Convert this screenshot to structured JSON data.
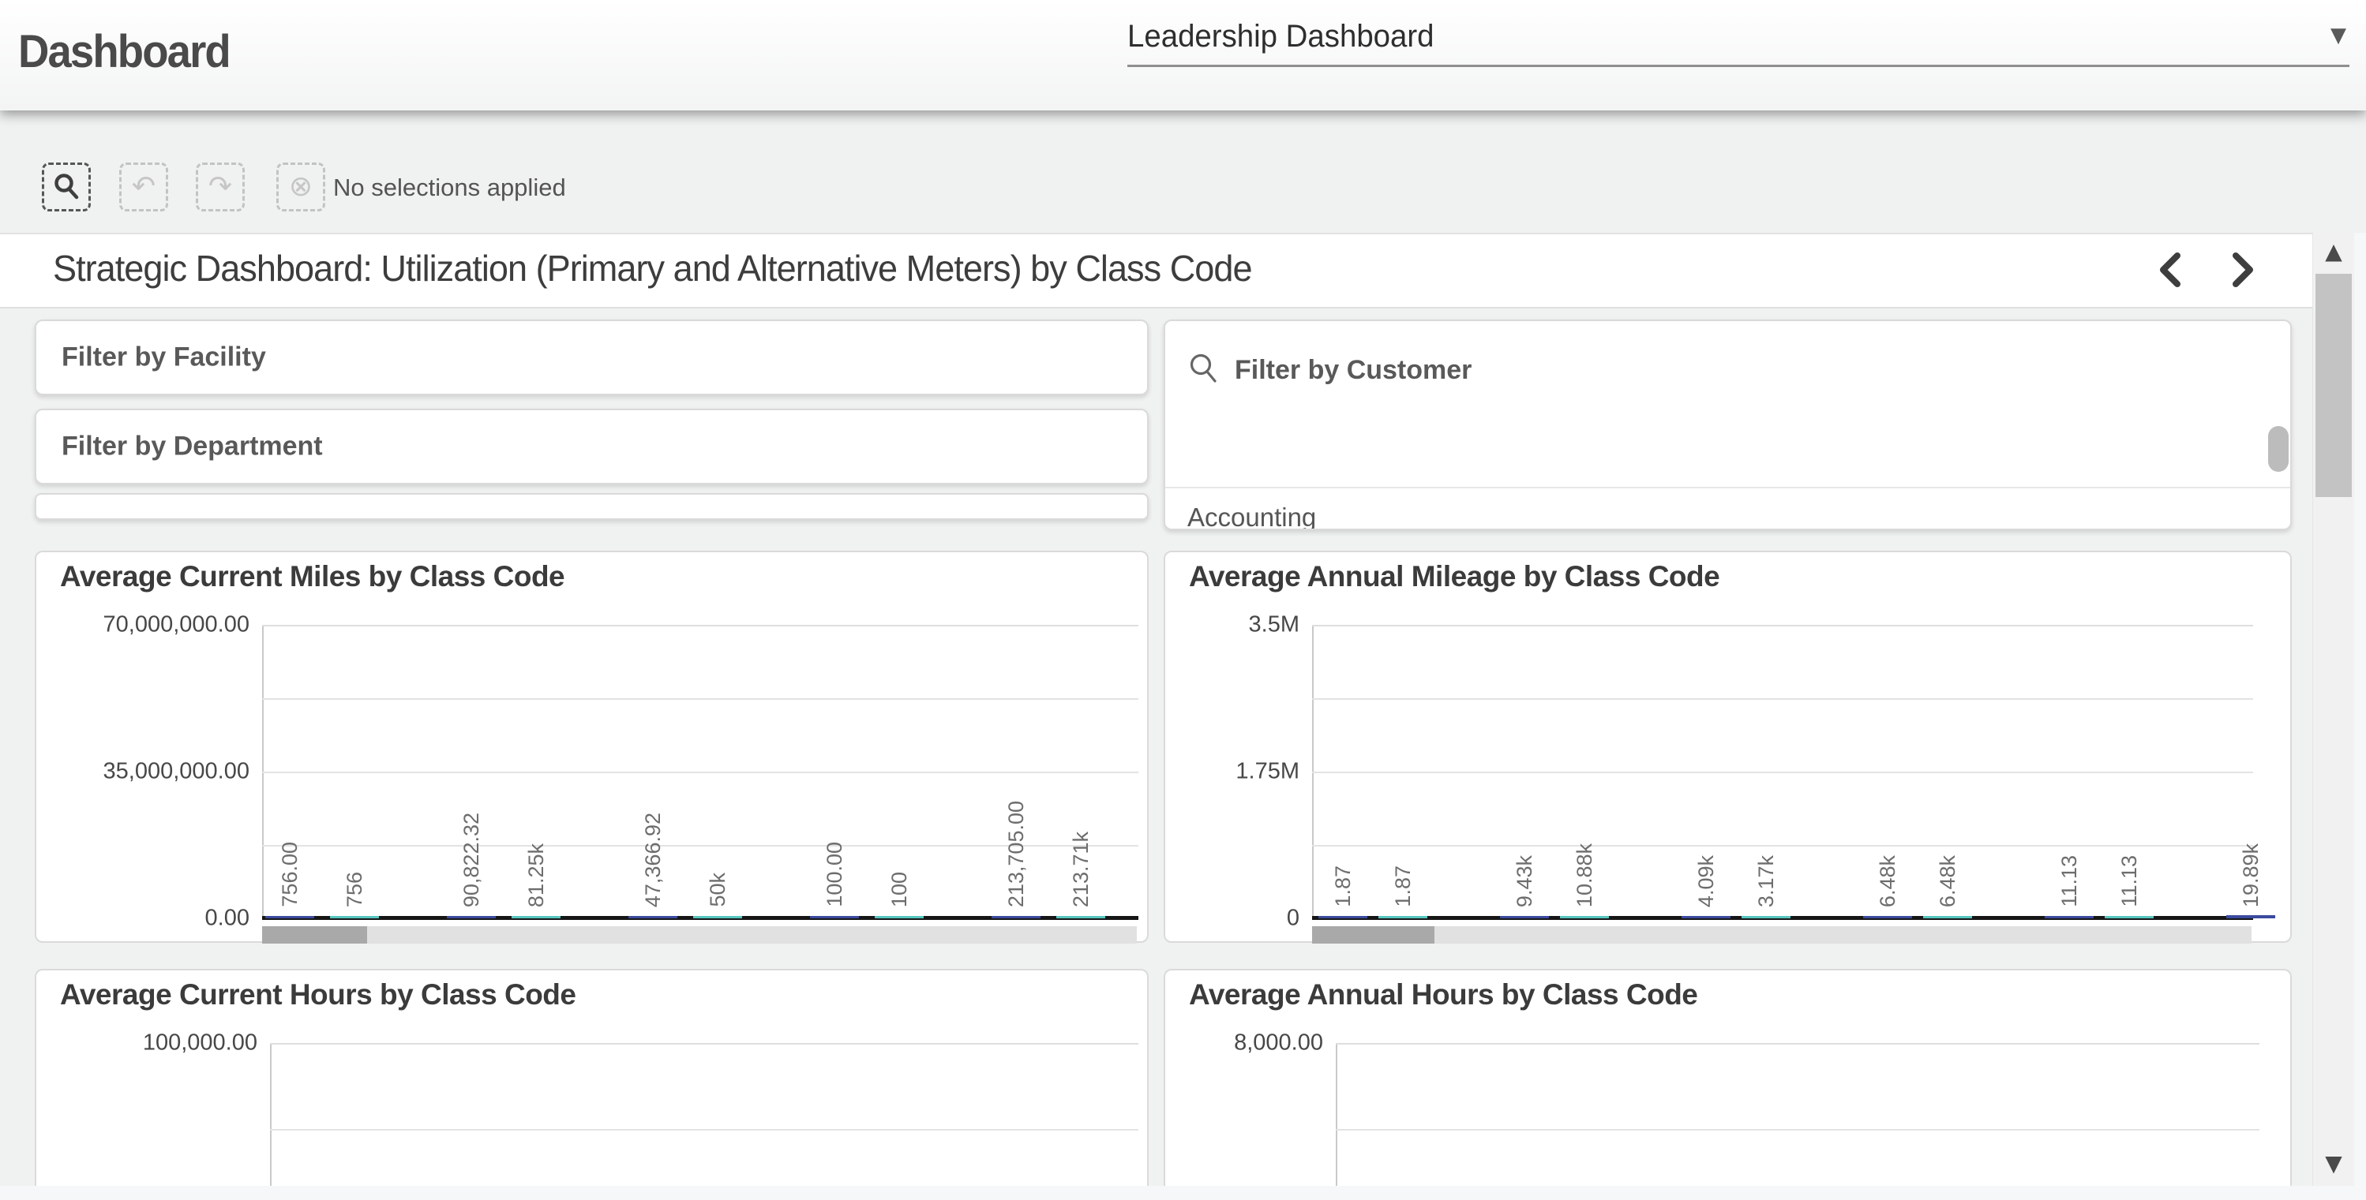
{
  "header": {
    "app_title": "Dashboard",
    "sheet_selector": {
      "value": "Leadership Dashboard"
    }
  },
  "selections_bar": {
    "status": "No selections applied",
    "icons": [
      {
        "name": "smart-search",
        "enabled": true
      },
      {
        "name": "selections-step-back",
        "enabled": false
      },
      {
        "name": "selections-step-forward",
        "enabled": false
      },
      {
        "name": "clear-all-selections",
        "enabled": false
      }
    ]
  },
  "sheet": {
    "title": "Strategic Dashboard: Utilization (Primary and Alternative Meters) by Class Code"
  },
  "filters": {
    "facility_label": "Filter by Facility",
    "department_label": "Filter by Department",
    "customer_label": "Filter by Customer",
    "customer_first_item": "Accounting"
  },
  "colors": {
    "bar_primary": "#3b4a9e",
    "bar_alternative": "#57c7c0",
    "accent_text": "#595959"
  },
  "chart_data": [
    {
      "type": "bar",
      "title": "Average Current Miles by Class Code",
      "ylabel": "",
      "xlabel": "",
      "ylim": [
        0,
        70000000
      ],
      "ytick_labels": [
        "70,000,000.00",
        "35,000,000.00",
        "0.00"
      ],
      "grid": true,
      "legend": false,
      "series_colors": [
        "#3b4a9e",
        "#57c7c0"
      ],
      "bar_labels": [
        "756.00",
        "756",
        "90,822.32",
        "81.25k",
        "47,366.92",
        "50k",
        "100.00",
        "100",
        "213,705.00",
        "213.71k"
      ],
      "values": [
        756,
        756,
        90822.32,
        81250,
        47366.92,
        50000,
        100,
        100,
        213705,
        213710
      ],
      "partially_visible": false
    },
    {
      "type": "bar",
      "title": "Average Annual Mileage by Class Code",
      "ylabel": "",
      "xlabel": "",
      "ylim": [
        0,
        3500000
      ],
      "ytick_labels": [
        "3.5M",
        "1.75M",
        "0"
      ],
      "grid": true,
      "legend": false,
      "series_colors": [
        "#3b4a9e",
        "#57c7c0"
      ],
      "bar_labels": [
        "1.87",
        "1.87",
        "9.43k",
        "10.88k",
        "4.09k",
        "3.17k",
        "6.48k",
        "6.48k",
        "11.13",
        "11.13",
        "19.89k"
      ],
      "values": [
        1.87,
        1.87,
        9430,
        10880,
        4090,
        3170,
        6480,
        6480,
        11.13,
        11.13,
        19890
      ],
      "partially_visible": false
    },
    {
      "type": "bar",
      "title": "Average Current Hours by Class Code",
      "ylabel": "",
      "xlabel": "",
      "ylim": [
        0,
        100000
      ],
      "ytick_labels": [
        "100,000.00"
      ],
      "grid": true,
      "legend": false,
      "series_colors": [
        "#3b4a9e",
        "#57c7c0"
      ],
      "bar_labels": [],
      "values": [],
      "partially_visible": true
    },
    {
      "type": "bar",
      "title": "Average Annual Hours by Class Code",
      "ylabel": "",
      "xlabel": "",
      "ylim": [
        0,
        8000
      ],
      "ytick_labels": [
        "8,000.00"
      ],
      "grid": true,
      "legend": false,
      "series_colors": [
        "#3b4a9e",
        "#57c7c0"
      ],
      "bar_labels": [],
      "values": [],
      "partially_visible": true
    }
  ]
}
